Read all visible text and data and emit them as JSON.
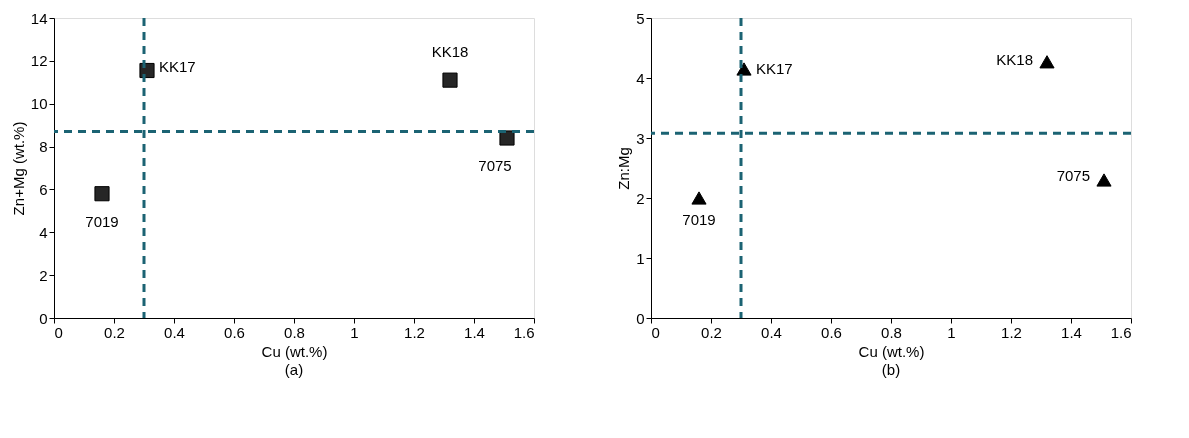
{
  "chart_data": [
    {
      "type": "scatter",
      "xlabel": "Cu (wt.%)",
      "ylabel": "Zn+Mg (wt.%)",
      "xlim": [
        0,
        1.6
      ],
      "xticks": [
        0,
        0.2,
        0.4,
        0.6,
        0.8,
        1,
        1.2,
        1.4,
        1.6
      ],
      "ylim": [
        0,
        14
      ],
      "yticks": [
        0,
        2,
        4,
        6,
        8,
        10,
        12,
        14
      ],
      "grid": false,
      "marker": "square",
      "series": [
        {
          "color": "#262626",
          "x": [
            0.16,
            0.31,
            1.32,
            1.51
          ],
          "values": [
            5.8,
            11.55,
            11.1,
            8.4
          ]
        }
      ],
      "ref_lines": [
        {
          "axis": "x",
          "value": 0.3,
          "color": "#1b6373",
          "line_style": "dashed"
        },
        {
          "axis": "y",
          "value": 8.7,
          "color": "#1b6373",
          "line_style": "dashed"
        }
      ],
      "annotations": [
        {
          "text": "7019",
          "x": 0.16,
          "y": 5.8
        },
        {
          "text": "KK17",
          "x": 0.31,
          "y": 11.55
        },
        {
          "text": "KK18",
          "x": 1.32,
          "y": 11.1
        },
        {
          "text": "7075",
          "x": 1.51,
          "y": 8.4
        },
        "(a)"
      ]
    },
    {
      "type": "scatter",
      "xlabel": "Cu (wt.%)",
      "ylabel": "Zn:Mg",
      "xlim": [
        0,
        1.6
      ],
      "xticks": [
        0,
        0.2,
        0.4,
        0.6,
        0.8,
        1,
        1.2,
        1.4,
        1.6
      ],
      "ylim": [
        0,
        5
      ],
      "yticks": [
        0,
        1,
        2,
        3,
        4,
        5
      ],
      "grid": false,
      "marker": "triangle",
      "series": [
        {
          "color": "#000000",
          "x": [
            0.16,
            0.31,
            1.32,
            1.51
          ],
          "values": [
            2.0,
            4.15,
            4.27,
            2.3
          ]
        }
      ],
      "ref_lines": [
        {
          "axis": "x",
          "value": 0.3,
          "color": "#1b6373",
          "line_style": "dashed"
        },
        {
          "axis": "y",
          "value": 3.08,
          "color": "#1b6373",
          "line_style": "dashed"
        }
      ],
      "annotations": [
        {
          "text": "7019",
          "x": 0.16,
          "y": 2.0
        },
        {
          "text": "KK17",
          "x": 0.31,
          "y": 4.15
        },
        {
          "text": "KK18",
          "x": 1.32,
          "y": 4.27
        },
        {
          "text": "7075",
          "x": 1.51,
          "y": 2.3
        },
        "(b)"
      ]
    }
  ]
}
